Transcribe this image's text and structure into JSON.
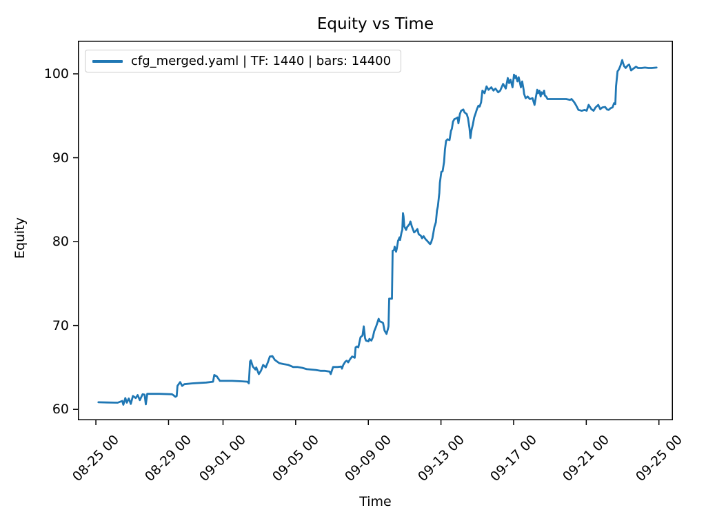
{
  "chart_data": {
    "type": "line",
    "title": "Equity vs Time",
    "xlabel": "Time",
    "ylabel": "Equity",
    "legend": [
      {
        "label": "cfg_merged.yaml | TF: 1440 | bars: 14400",
        "color": "#1f77b4"
      }
    ],
    "legend_position": "upper left",
    "grid": false,
    "line_color": "#1f77b4",
    "axis_color": "#000000",
    "background_color": "#ffffff",
    "x_unit": "day index (0 = 08-24 00:00, hours as fraction)",
    "xlim_days": [
      0.01,
      32.77
    ],
    "ylim": [
      58.7,
      103.95
    ],
    "yticks": [
      {
        "value": 60,
        "label": "60"
      },
      {
        "value": 70,
        "label": "70"
      },
      {
        "value": 80,
        "label": "80"
      },
      {
        "value": 90,
        "label": "90"
      },
      {
        "value": 100,
        "label": "100"
      }
    ],
    "xticks": [
      {
        "day": 1,
        "label": "08-25 00"
      },
      {
        "day": 5,
        "label": "08-29 00"
      },
      {
        "day": 8,
        "label": "09-01 00"
      },
      {
        "day": 12,
        "label": "09-05 00"
      },
      {
        "day": 16,
        "label": "09-09 00"
      },
      {
        "day": 20,
        "label": "09-13 00"
      },
      {
        "day": 24,
        "label": "09-17 00"
      },
      {
        "day": 28,
        "label": "09-21 00"
      },
      {
        "day": 32,
        "label": "09-25 00"
      }
    ],
    "series": [
      {
        "name": "cfg_merged.yaml | TF: 1440 | bars: 14400",
        "points": [
          [
            1.14,
            60.85
          ],
          [
            1.6,
            60.82
          ],
          [
            2.2,
            60.8
          ],
          [
            2.45,
            61.0
          ],
          [
            2.51,
            60.55
          ],
          [
            2.62,
            61.35
          ],
          [
            2.7,
            60.8
          ],
          [
            2.81,
            61.3
          ],
          [
            2.92,
            60.65
          ],
          [
            3.04,
            61.6
          ],
          [
            3.19,
            61.35
          ],
          [
            3.3,
            61.7
          ],
          [
            3.42,
            61.1
          ],
          [
            3.57,
            61.8
          ],
          [
            3.68,
            61.75
          ],
          [
            3.75,
            60.6
          ],
          [
            3.83,
            61.85
          ],
          [
            4.5,
            61.85
          ],
          [
            5.19,
            61.8
          ],
          [
            5.26,
            61.7
          ],
          [
            5.38,
            61.5
          ],
          [
            5.45,
            61.6
          ],
          [
            5.49,
            62.8
          ],
          [
            5.64,
            63.25
          ],
          [
            5.75,
            62.8
          ],
          [
            5.87,
            63.0
          ],
          [
            6.32,
            63.1
          ],
          [
            7.08,
            63.2
          ],
          [
            7.45,
            63.3
          ],
          [
            7.52,
            64.1
          ],
          [
            7.65,
            63.95
          ],
          [
            7.83,
            63.4
          ],
          [
            8.5,
            63.4
          ],
          [
            9.0,
            63.35
          ],
          [
            9.34,
            63.3
          ],
          [
            9.42,
            63.1
          ],
          [
            9.49,
            65.7
          ],
          [
            9.53,
            65.85
          ],
          [
            9.64,
            65.1
          ],
          [
            9.78,
            64.75
          ],
          [
            9.83,
            65.0
          ],
          [
            9.97,
            64.2
          ],
          [
            10.09,
            64.6
          ],
          [
            10.21,
            65.3
          ],
          [
            10.35,
            65.0
          ],
          [
            10.47,
            65.6
          ],
          [
            10.58,
            66.3
          ],
          [
            10.72,
            66.35
          ],
          [
            10.85,
            65.9
          ],
          [
            11.1,
            65.5
          ],
          [
            11.34,
            65.4
          ],
          [
            11.6,
            65.3
          ],
          [
            11.86,
            65.05
          ],
          [
            12.09,
            65.05
          ],
          [
            12.36,
            64.95
          ],
          [
            12.61,
            64.8
          ],
          [
            12.85,
            64.75
          ],
          [
            13.11,
            64.7
          ],
          [
            13.36,
            64.6
          ],
          [
            13.6,
            64.6
          ],
          [
            13.87,
            64.5
          ],
          [
            13.93,
            64.2
          ],
          [
            14.06,
            65.05
          ],
          [
            14.3,
            65.05
          ],
          [
            14.51,
            65.1
          ],
          [
            14.55,
            64.85
          ],
          [
            14.62,
            65.3
          ],
          [
            14.74,
            65.7
          ],
          [
            14.81,
            65.8
          ],
          [
            14.89,
            65.6
          ],
          [
            15.0,
            66.0
          ],
          [
            15.11,
            66.3
          ],
          [
            15.25,
            66.15
          ],
          [
            15.3,
            67.4
          ],
          [
            15.38,
            67.5
          ],
          [
            15.45,
            67.4
          ],
          [
            15.49,
            67.8
          ],
          [
            15.57,
            68.6
          ],
          [
            15.68,
            68.8
          ],
          [
            15.75,
            69.9
          ],
          [
            15.82,
            68.5
          ],
          [
            15.87,
            68.2
          ],
          [
            16.01,
            68.1
          ],
          [
            16.06,
            68.4
          ],
          [
            16.17,
            68.2
          ],
          [
            16.25,
            68.6
          ],
          [
            16.32,
            69.3
          ],
          [
            16.43,
            69.9
          ],
          [
            16.57,
            70.8
          ],
          [
            16.62,
            70.5
          ],
          [
            16.74,
            70.4
          ],
          [
            16.81,
            70.3
          ],
          [
            16.89,
            69.4
          ],
          [
            17.0,
            69.0
          ],
          [
            17.08,
            69.6
          ],
          [
            17.11,
            69.9
          ],
          [
            17.15,
            73.2
          ],
          [
            17.3,
            73.2
          ],
          [
            17.34,
            78.9
          ],
          [
            17.42,
            79.0
          ],
          [
            17.45,
            79.4
          ],
          [
            17.53,
            78.8
          ],
          [
            17.57,
            79.2
          ],
          [
            17.64,
            80.1
          ],
          [
            17.72,
            80.5
          ],
          [
            17.75,
            80.2
          ],
          [
            17.83,
            81.1
          ],
          [
            17.87,
            81.4
          ],
          [
            17.91,
            83.4
          ],
          [
            17.94,
            83.0
          ],
          [
            17.98,
            81.8
          ],
          [
            18.08,
            81.4
          ],
          [
            18.13,
            81.7
          ],
          [
            18.27,
            82.1
          ],
          [
            18.32,
            82.4
          ],
          [
            18.4,
            81.8
          ],
          [
            18.52,
            81.1
          ],
          [
            18.58,
            81.2
          ],
          [
            18.7,
            81.5
          ],
          [
            18.77,
            80.9
          ],
          [
            18.89,
            80.7
          ],
          [
            18.96,
            80.4
          ],
          [
            19.04,
            80.65
          ],
          [
            19.15,
            80.3
          ],
          [
            19.28,
            80.0
          ],
          [
            19.4,
            79.7
          ],
          [
            19.45,
            79.85
          ],
          [
            19.53,
            80.4
          ],
          [
            19.64,
            81.75
          ],
          [
            19.72,
            82.3
          ],
          [
            19.78,
            83.7
          ],
          [
            19.83,
            84.2
          ],
          [
            19.91,
            85.8
          ],
          [
            19.94,
            87.0
          ],
          [
            20.02,
            88.3
          ],
          [
            20.09,
            88.4
          ],
          [
            20.17,
            89.5
          ],
          [
            20.22,
            91.0
          ],
          [
            20.28,
            92.0
          ],
          [
            20.36,
            92.2
          ],
          [
            20.47,
            92.1
          ],
          [
            20.55,
            93.2
          ],
          [
            20.6,
            93.45
          ],
          [
            20.66,
            94.3
          ],
          [
            20.74,
            94.6
          ],
          [
            20.85,
            94.7
          ],
          [
            20.92,
            94.8
          ],
          [
            20.96,
            94.1
          ],
          [
            21.04,
            95.2
          ],
          [
            21.11,
            95.6
          ],
          [
            21.23,
            95.75
          ],
          [
            21.3,
            95.4
          ],
          [
            21.42,
            95.2
          ],
          [
            21.49,
            94.7
          ],
          [
            21.57,
            93.5
          ],
          [
            21.62,
            92.35
          ],
          [
            21.68,
            93.3
          ],
          [
            21.75,
            93.9
          ],
          [
            21.83,
            94.8
          ],
          [
            21.91,
            95.3
          ],
          [
            21.98,
            95.8
          ],
          [
            22.06,
            96.2
          ],
          [
            22.13,
            96.1
          ],
          [
            22.21,
            96.6
          ],
          [
            22.28,
            98.0
          ],
          [
            22.4,
            97.7
          ],
          [
            22.51,
            98.5
          ],
          [
            22.62,
            98.1
          ],
          [
            22.77,
            98.4
          ],
          [
            22.89,
            98.0
          ],
          [
            23.0,
            98.25
          ],
          [
            23.15,
            97.8
          ],
          [
            23.26,
            98.0
          ],
          [
            23.42,
            98.8
          ],
          [
            23.57,
            98.25
          ],
          [
            23.68,
            99.5
          ],
          [
            23.75,
            98.9
          ],
          [
            23.83,
            99.3
          ],
          [
            23.94,
            98.4
          ],
          [
            24.02,
            99.9
          ],
          [
            24.09,
            99.5
          ],
          [
            24.13,
            99.75
          ],
          [
            24.21,
            99.1
          ],
          [
            24.28,
            99.6
          ],
          [
            24.36,
            98.8
          ],
          [
            24.4,
            98.4
          ],
          [
            24.47,
            99.1
          ],
          [
            24.55,
            98.1
          ],
          [
            24.58,
            97.6
          ],
          [
            24.66,
            97.1
          ],
          [
            24.77,
            97.3
          ],
          [
            24.89,
            97.0
          ],
          [
            25.04,
            97.1
          ],
          [
            25.11,
            96.6
          ],
          [
            25.15,
            96.3
          ],
          [
            25.23,
            97.3
          ],
          [
            25.3,
            98.1
          ],
          [
            25.34,
            97.7
          ],
          [
            25.42,
            98.0
          ],
          [
            25.49,
            97.3
          ],
          [
            25.53,
            97.8
          ],
          [
            25.6,
            97.6
          ],
          [
            25.68,
            98.0
          ],
          [
            25.72,
            97.4
          ],
          [
            25.79,
            97.3
          ],
          [
            25.87,
            97.0
          ],
          [
            26.32,
            97.0
          ],
          [
            26.89,
            97.0
          ],
          [
            27.11,
            96.9
          ],
          [
            27.19,
            97.0
          ],
          [
            27.34,
            96.6
          ],
          [
            27.45,
            96.2
          ],
          [
            27.57,
            95.7
          ],
          [
            27.75,
            95.6
          ],
          [
            27.91,
            95.7
          ],
          [
            28.02,
            95.6
          ],
          [
            28.13,
            96.3
          ],
          [
            28.28,
            95.8
          ],
          [
            28.4,
            95.6
          ],
          [
            28.51,
            96.0
          ],
          [
            28.66,
            96.3
          ],
          [
            28.77,
            95.8
          ],
          [
            28.89,
            96.0
          ],
          [
            29.04,
            96.05
          ],
          [
            29.15,
            95.75
          ],
          [
            29.23,
            95.7
          ],
          [
            29.34,
            95.9
          ],
          [
            29.45,
            96.0
          ],
          [
            29.53,
            96.5
          ],
          [
            29.6,
            96.4
          ],
          [
            29.64,
            98.5
          ],
          [
            29.72,
            100.3
          ],
          [
            29.79,
            100.5
          ],
          [
            29.87,
            100.9
          ],
          [
            29.98,
            101.65
          ],
          [
            30.02,
            101.3
          ],
          [
            30.09,
            100.9
          ],
          [
            30.17,
            100.7
          ],
          [
            30.28,
            101.0
          ],
          [
            30.36,
            101.1
          ],
          [
            30.47,
            100.4
          ],
          [
            30.58,
            100.6
          ],
          [
            30.74,
            100.85
          ],
          [
            30.85,
            100.7
          ],
          [
            31.04,
            100.7
          ],
          [
            31.23,
            100.75
          ],
          [
            31.42,
            100.7
          ],
          [
            31.6,
            100.7
          ],
          [
            31.87,
            100.75
          ]
        ]
      }
    ]
  }
}
